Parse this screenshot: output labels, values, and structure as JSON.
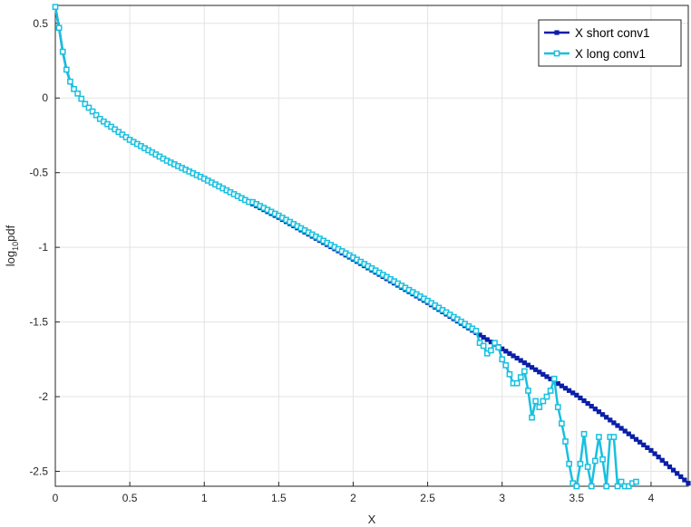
{
  "chart_data": {
    "type": "line",
    "title": "",
    "xlabel": "X",
    "ylabel": {
      "main": "log",
      "sub": "10",
      "tail": "pdf"
    },
    "xlim": [
      0,
      4.25
    ],
    "ylim": [
      -2.6,
      0.62
    ],
    "xticks": [
      0,
      0.5,
      1,
      1.5,
      2,
      2.5,
      3,
      3.5,
      4
    ],
    "xtick_labels": [
      "0",
      "0.5",
      "1",
      "1.5",
      "2",
      "2.5",
      "3",
      "3.5",
      "4"
    ],
    "yticks": [
      0.5,
      0,
      -0.5,
      -1,
      -1.5,
      -2,
      -2.5
    ],
    "ytick_labels": [
      "0.5",
      "0",
      "-0.5",
      "-1",
      "-1.5",
      "-2",
      "-2.5"
    ],
    "grid": true,
    "legend_position": "top-right",
    "series": [
      {
        "name": "X short conv1",
        "color": "#0b1fa8",
        "marker": "filled-square",
        "x_range": [
          0,
          4.25
        ],
        "step": 0.025,
        "curve_points": {
          "x": [
            0,
            0.025,
            0.05,
            0.075,
            0.1,
            0.125,
            0.15,
            0.2,
            0.3,
            0.4,
            0.5,
            0.75,
            1.0,
            1.25,
            1.5,
            2.0,
            2.5,
            3.0,
            3.5,
            4.0,
            4.25
          ],
          "y": [
            0.61,
            0.47,
            0.31,
            0.19,
            0.11,
            0.06,
            0.03,
            -0.04,
            -0.14,
            -0.21,
            -0.28,
            -0.42,
            -0.54,
            -0.67,
            -0.8,
            -1.08,
            -1.37,
            -1.68,
            -1.99,
            -2.36,
            -2.58
          ]
        }
      },
      {
        "name": "X long conv1",
        "color": "#18c0e0",
        "marker": "open-square",
        "tail_points": {
          "x": [
            2.85,
            2.875,
            2.9,
            2.925,
            2.95,
            2.975,
            3.0,
            3.025,
            3.05,
            3.075,
            3.1,
            3.125,
            3.15,
            3.175,
            3.2,
            3.225,
            3.25,
            3.275,
            3.3,
            3.325,
            3.35,
            3.375,
            3.4,
            3.425,
            3.45,
            3.475,
            3.5,
            3.525,
            3.55,
            3.575,
            3.6,
            3.625,
            3.65,
            3.675,
            3.7,
            3.725,
            3.75,
            3.775,
            3.8,
            3.825,
            3.85,
            3.875,
            3.9
          ],
          "y": [
            -1.64,
            -1.66,
            -1.71,
            -1.69,
            -1.64,
            -1.67,
            -1.75,
            -1.79,
            -1.85,
            -1.91,
            -1.91,
            -1.87,
            -1.83,
            -1.96,
            -2.14,
            -2.03,
            -2.07,
            -2.03,
            -2.0,
            -1.96,
            -1.88,
            -2.07,
            -2.18,
            -2.3,
            -2.45,
            -2.58,
            -2.6,
            -2.45,
            -2.25,
            -2.47,
            -2.6,
            -2.43,
            -2.27,
            -2.42,
            -2.6,
            -2.27,
            -2.27,
            -2.6,
            -2.57,
            -2.6,
            -2.6,
            -2.58,
            -2.57
          ]
        }
      }
    ]
  }
}
